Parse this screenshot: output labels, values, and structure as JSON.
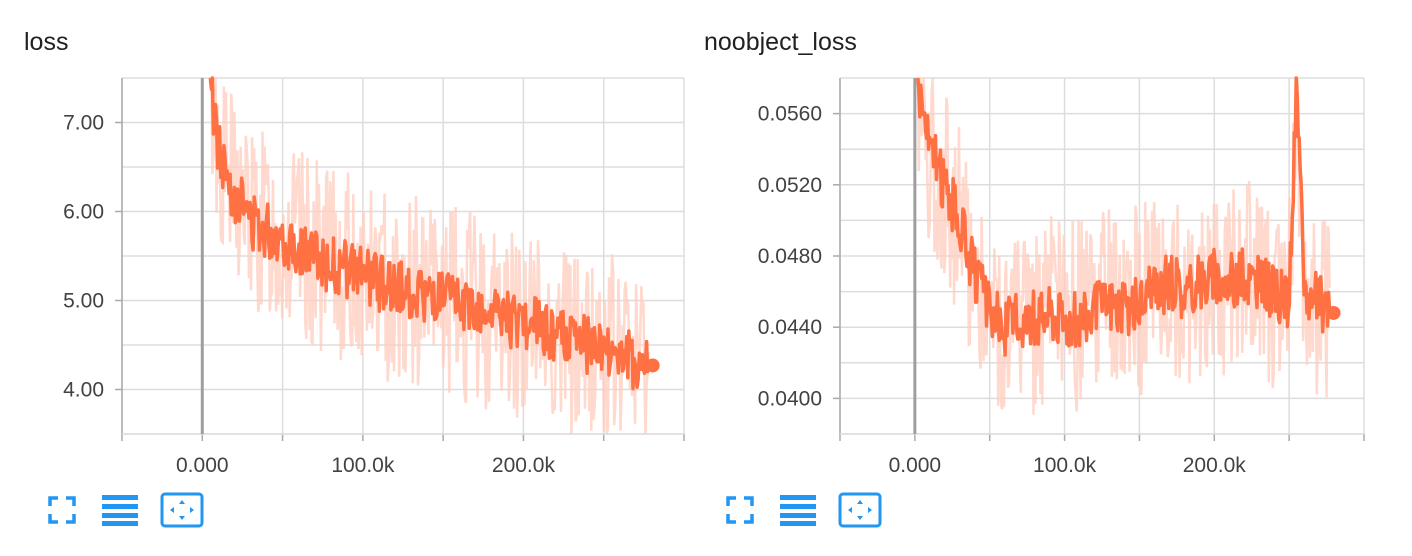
{
  "colors": {
    "series": "#ff7043",
    "series_raw": "#ffccbc",
    "grid": "#dddddd",
    "zero_line": "#9e9e9e",
    "axis": "#aaaaaa",
    "toolbar_icon": "#2196f3"
  },
  "toolbar_icons": [
    "fullscreen-icon",
    "list-icon",
    "fit-domain-icon"
  ],
  "chart_data": [
    {
      "type": "line",
      "title": "loss",
      "xlabel": "",
      "ylabel": "",
      "xlim": [
        -50000,
        300000
      ],
      "ylim": [
        3.5,
        7.5
      ],
      "x_ticks": [
        0,
        100000,
        200000
      ],
      "x_tick_labels": [
        "0.000",
        "100.0k",
        "200.0k"
      ],
      "y_ticks": [
        4.0,
        5.0,
        6.0,
        7.0
      ],
      "y_tick_labels": [
        "4.00",
        "5.00",
        "6.00",
        "7.00"
      ],
      "grid": true,
      "series": [
        {
          "smoothed": true,
          "x": [
            5000,
            10000,
            15000,
            20000,
            25000,
            30000,
            40000,
            50000,
            60000,
            70000,
            80000,
            90000,
            100000,
            110000,
            120000,
            130000,
            140000,
            150000,
            160000,
            170000,
            180000,
            190000,
            200000,
            210000,
            220000,
            230000,
            240000,
            250000,
            260000,
            270000,
            278000
          ],
          "y": [
            7.45,
            6.7,
            6.4,
            6.2,
            6.1,
            5.9,
            5.8,
            5.7,
            5.6,
            5.5,
            5.4,
            5.35,
            5.3,
            5.2,
            5.15,
            5.1,
            5.05,
            5.0,
            4.95,
            4.9,
            4.85,
            4.8,
            4.75,
            4.7,
            4.6,
            4.55,
            4.5,
            4.45,
            4.4,
            4.3,
            4.27
          ],
          "end_value": 4.27
        }
      ]
    },
    {
      "type": "line",
      "title": "noobject_loss",
      "xlabel": "",
      "ylabel": "",
      "xlim": [
        -50000,
        300000
      ],
      "ylim": [
        0.038,
        0.058
      ],
      "x_ticks": [
        0,
        100000,
        200000
      ],
      "x_tick_labels": [
        "0.000",
        "100.0k",
        "200.0k"
      ],
      "y_ticks": [
        0.04,
        0.044,
        0.048,
        0.052,
        0.056
      ],
      "y_tick_labels": [
        "0.0400",
        "0.0440",
        "0.0480",
        "0.0520",
        "0.0560"
      ],
      "grid": true,
      "series": [
        {
          "smoothed": true,
          "x": [
            2000,
            10000,
            20000,
            30000,
            40000,
            50000,
            60000,
            70000,
            80000,
            90000,
            100000,
            110000,
            120000,
            130000,
            140000,
            150000,
            160000,
            170000,
            180000,
            190000,
            200000,
            210000,
            220000,
            230000,
            240000,
            250000,
            255000,
            260000,
            270000,
            277000
          ],
          "y": [
            0.058,
            0.054,
            0.052,
            0.05,
            0.047,
            0.045,
            0.044,
            0.0445,
            0.0445,
            0.045,
            0.0445,
            0.0445,
            0.045,
            0.0455,
            0.045,
            0.0455,
            0.046,
            0.0465,
            0.046,
            0.0465,
            0.047,
            0.0465,
            0.047,
            0.0465,
            0.046,
            0.0455,
            0.058,
            0.046,
            0.0455,
            0.0448
          ],
          "end_value": 0.0448
        }
      ]
    }
  ]
}
